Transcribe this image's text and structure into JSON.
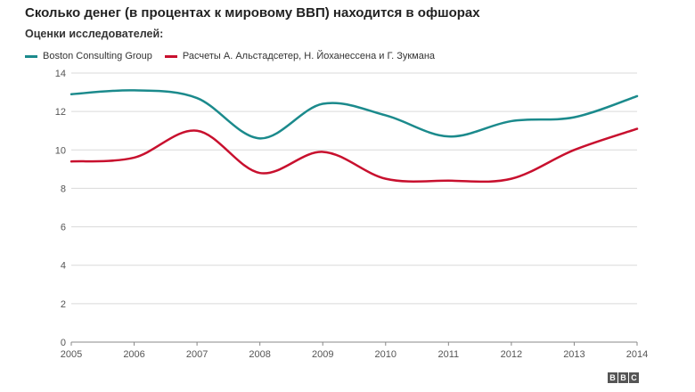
{
  "title": "Сколько денег (в процентах к мировому ВВП) находится в офшорах",
  "subtitle": "Оценки исследователей:",
  "legend": [
    {
      "name": "Boston Consulting Group",
      "color": "#1b8a8c"
    },
    {
      "name": "Расчеты А. Альстадсетер, Н. Йоханессена и Г. Зукмана",
      "color": "#c8102e"
    }
  ],
  "logo": [
    "B",
    "B",
    "C"
  ],
  "chart_data": {
    "type": "line",
    "x": [
      2005,
      2006,
      2007,
      2008,
      2009,
      2010,
      2011,
      2012,
      2013,
      2014
    ],
    "series": [
      {
        "name": "Boston Consulting Group",
        "color": "#1b8a8c",
        "values": [
          12.9,
          13.1,
          12.7,
          10.6,
          12.4,
          11.8,
          10.7,
          11.5,
          11.7,
          12.8
        ]
      },
      {
        "name": "Расчеты А. Альстадсетер, Н. Йоханессена и Г. Зукмана",
        "color": "#c8102e",
        "values": [
          9.4,
          9.6,
          11.0,
          8.8,
          9.9,
          8.5,
          8.4,
          8.5,
          10.0,
          11.1
        ]
      }
    ],
    "ylim": [
      0,
      14
    ],
    "yticks": [
      0,
      2,
      4,
      6,
      8,
      10,
      12,
      14
    ],
    "grid": true,
    "legend_position": "top-left"
  }
}
